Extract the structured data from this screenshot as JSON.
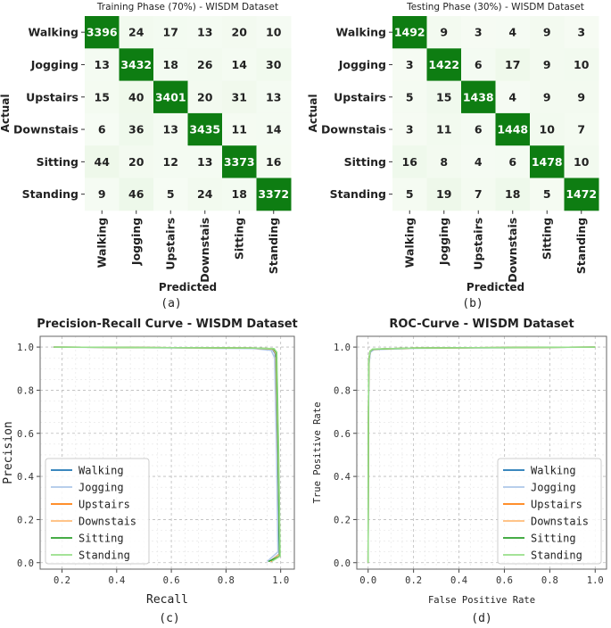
{
  "captions": [
    "(a)",
    "(b)",
    "(c)",
    "(d)"
  ],
  "chart_data": [
    {
      "type": "heatmap",
      "title": "Training Phase (70%) - WISDM Dataset",
      "xlabel": "Predicted",
      "ylabel": "Actual",
      "categories": [
        "Walking",
        "Jogging",
        "Upstairs",
        "Downstais",
        "Sitting",
        "Standing"
      ],
      "matrix": [
        [
          3396,
          24,
          17,
          13,
          20,
          10
        ],
        [
          13,
          3432,
          18,
          26,
          14,
          30
        ],
        [
          15,
          40,
          3401,
          20,
          31,
          13
        ],
        [
          6,
          36,
          13,
          3435,
          11,
          14
        ],
        [
          44,
          20,
          12,
          13,
          3373,
          16
        ],
        [
          9,
          46,
          5,
          24,
          18,
          3372
        ]
      ],
      "colors": {
        "high": "#0e7d12",
        "low": "#f7fcf5"
      }
    },
    {
      "type": "heatmap",
      "title": "Testing Phase (30%) - WISDM Dataset",
      "xlabel": "Predicted",
      "ylabel": "Actual",
      "categories": [
        "Walking",
        "Jogging",
        "Upstairs",
        "Downstais",
        "Sitting",
        "Standing"
      ],
      "matrix": [
        [
          1492,
          9,
          3,
          4,
          9,
          3
        ],
        [
          3,
          1422,
          6,
          17,
          9,
          10
        ],
        [
          5,
          15,
          1438,
          4,
          9,
          9
        ],
        [
          3,
          11,
          6,
          1448,
          10,
          7
        ],
        [
          16,
          8,
          4,
          6,
          1478,
          10
        ],
        [
          5,
          19,
          7,
          18,
          5,
          1472
        ]
      ],
      "colors": {
        "high": "#0e7d12",
        "low": "#f7fcf5"
      }
    },
    {
      "type": "line",
      "title": "Precision-Recall Curve - WISDM Dataset",
      "xlabel": "Recall",
      "ylabel": "Precision",
      "xlim": [
        0.12,
        1.05
      ],
      "ylim": [
        -0.03,
        1.05
      ],
      "xticks": [
        "0.2",
        "0.4",
        "0.6",
        "0.8",
        "1.0"
      ],
      "yticks": [
        "0.0",
        "0.2",
        "0.4",
        "0.6",
        "0.8",
        "1.0"
      ],
      "grid": true,
      "legend": "lower-left",
      "series": [
        {
          "name": "Walking",
          "color": "#1f77b4",
          "points": [
            [
              0.17,
              1.0
            ],
            [
              0.5,
              0.998
            ],
            [
              0.9,
              0.995
            ],
            [
              0.97,
              0.99
            ],
            [
              0.98,
              0.97
            ],
            [
              0.99,
              0.5
            ],
            [
              0.995,
              0.04
            ],
            [
              0.96,
              0.006
            ]
          ]
        },
        {
          "name": "Jogging",
          "color": "#aec7e8",
          "points": [
            [
              0.17,
              1.0
            ],
            [
              0.5,
              0.997
            ],
            [
              0.9,
              0.993
            ],
            [
              0.965,
              0.985
            ],
            [
              0.978,
              0.95
            ],
            [
              0.985,
              0.5
            ],
            [
              0.99,
              0.05
            ],
            [
              0.95,
              0.005
            ]
          ]
        },
        {
          "name": "Upstairs",
          "color": "#ff7f0e",
          "points": [
            [
              0.17,
              1.0
            ],
            [
              0.5,
              0.998
            ],
            [
              0.9,
              0.996
            ],
            [
              0.975,
              0.992
            ],
            [
              0.985,
              0.975
            ],
            [
              0.992,
              0.5
            ],
            [
              0.997,
              0.03
            ],
            [
              0.965,
              0.006
            ]
          ]
        },
        {
          "name": "Downstais",
          "color": "#ffbb78",
          "points": [
            [
              0.17,
              1.0
            ],
            [
              0.5,
              0.998
            ],
            [
              0.9,
              0.995
            ],
            [
              0.972,
              0.99
            ],
            [
              0.982,
              0.97
            ],
            [
              0.99,
              0.5
            ],
            [
              0.996,
              0.04
            ],
            [
              0.96,
              0.005
            ]
          ]
        },
        {
          "name": "Sitting",
          "color": "#2ca02c",
          "points": [
            [
              0.17,
              1.0
            ],
            [
              0.5,
              0.998
            ],
            [
              0.9,
              0.996
            ],
            [
              0.974,
              0.992
            ],
            [
              0.984,
              0.975
            ],
            [
              0.991,
              0.5
            ],
            [
              0.996,
              0.03
            ],
            [
              0.955,
              0.005
            ]
          ]
        },
        {
          "name": "Standing",
          "color": "#98df8a",
          "points": [
            [
              0.17,
              1.0
            ],
            [
              0.5,
              0.998
            ],
            [
              0.9,
              0.996
            ],
            [
              0.976,
              0.993
            ],
            [
              0.986,
              0.976
            ],
            [
              0.993,
              0.5
            ],
            [
              0.998,
              0.03
            ],
            [
              0.968,
              0.006
            ]
          ]
        }
      ]
    },
    {
      "type": "line",
      "title": "ROC-Curve - WISDM Dataset",
      "xlabel": "False Positive Rate",
      "ylabel": "True Positive Rate",
      "xlim": [
        -0.05,
        1.05
      ],
      "ylim": [
        -0.03,
        1.05
      ],
      "xticks": [
        "0.0",
        "0.2",
        "0.4",
        "0.6",
        "0.8",
        "1.0"
      ],
      "yticks": [
        "0.0",
        "0.2",
        "0.4",
        "0.6",
        "0.8",
        "1.0"
      ],
      "grid": true,
      "legend": "lower-right",
      "series": [
        {
          "name": "Walking",
          "color": "#1f77b4",
          "points": [
            [
              0,
              0
            ],
            [
              0.001,
              0.6
            ],
            [
              0.003,
              0.93
            ],
            [
              0.008,
              0.98
            ],
            [
              0.02,
              0.99
            ],
            [
              0.2,
              0.995
            ],
            [
              1,
              1
            ]
          ]
        },
        {
          "name": "Jogging",
          "color": "#aec7e8",
          "points": [
            [
              0,
              0
            ],
            [
              0.001,
              0.55
            ],
            [
              0.004,
              0.92
            ],
            [
              0.01,
              0.975
            ],
            [
              0.025,
              0.988
            ],
            [
              0.2,
              0.994
            ],
            [
              1,
              1
            ]
          ]
        },
        {
          "name": "Upstairs",
          "color": "#ff7f0e",
          "points": [
            [
              0,
              0
            ],
            [
              0.001,
              0.62
            ],
            [
              0.003,
              0.94
            ],
            [
              0.008,
              0.98
            ],
            [
              0.02,
              0.99
            ],
            [
              0.2,
              0.996
            ],
            [
              1,
              1
            ]
          ]
        },
        {
          "name": "Downstais",
          "color": "#ffbb78",
          "points": [
            [
              0,
              0
            ],
            [
              0.001,
              0.6
            ],
            [
              0.003,
              0.93
            ],
            [
              0.008,
              0.98
            ],
            [
              0.02,
              0.99
            ],
            [
              0.2,
              0.995
            ],
            [
              1,
              1
            ]
          ]
        },
        {
          "name": "Sitting",
          "color": "#2ca02c",
          "points": [
            [
              0,
              0
            ],
            [
              0.001,
              0.62
            ],
            [
              0.003,
              0.94
            ],
            [
              0.008,
              0.98
            ],
            [
              0.02,
              0.99
            ],
            [
              0.2,
              0.996
            ],
            [
              1,
              1
            ]
          ]
        },
        {
          "name": "Standing",
          "color": "#98df8a",
          "points": [
            [
              0,
              0
            ],
            [
              0.001,
              0.63
            ],
            [
              0.003,
              0.94
            ],
            [
              0.008,
              0.981
            ],
            [
              0.02,
              0.991
            ],
            [
              0.2,
              0.996
            ],
            [
              1,
              1
            ]
          ]
        }
      ]
    }
  ]
}
